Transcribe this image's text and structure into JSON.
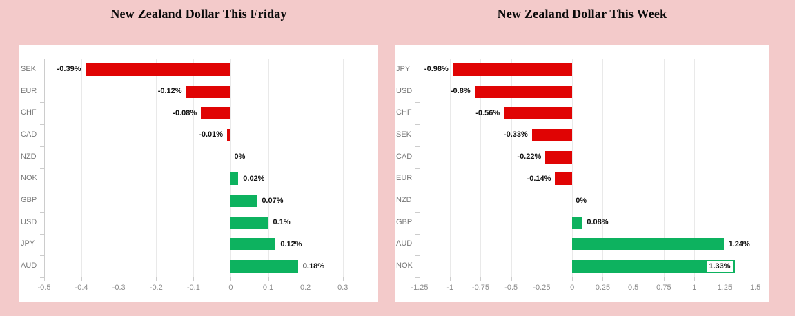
{
  "colors": {
    "page_background": "#f3caca",
    "card_background": "#ffffff",
    "bar_negative": "#e00404",
    "bar_positive": "#0db25f",
    "gridline": "#e9e9e9",
    "axis_line": "#cccccc",
    "tick_label_color": "#8a8a8a",
    "category_label_color": "#777777",
    "value_label_color": "#111111",
    "title_color": "#0a0a0a",
    "inside_label_background": "#ffffff"
  },
  "chart_data": [
    {
      "type": "bar",
      "orientation": "horizontal",
      "title": "New Zealand Dollar This Friday",
      "categories": [
        "SEK",
        "EUR",
        "CHF",
        "CAD",
        "NZD",
        "NOK",
        "GBP",
        "USD",
        "JPY",
        "AUD"
      ],
      "values": [
        -0.39,
        -0.12,
        -0.08,
        -0.01,
        0,
        0.02,
        0.07,
        0.1,
        0.12,
        0.18
      ],
      "value_labels": [
        "-0.39%",
        "-0.12%",
        "-0.08%",
        "-0.01%",
        "0%",
        "0.02%",
        "0.07%",
        "0.1%",
        "0.12%",
        "0.18%"
      ],
      "xticks": [
        -0.5,
        -0.4,
        -0.3,
        -0.2,
        -0.1,
        0,
        0.1,
        0.2,
        0.3
      ],
      "xtick_labels": [
        "-0.5",
        "-0.4",
        "-0.3",
        "-0.2",
        "-0.1",
        "0",
        "0.1",
        "0.2",
        "0.3"
      ],
      "xlim": [
        -0.5,
        0.38
      ],
      "grid": true,
      "legend": "none",
      "xlabel": "",
      "ylabel": ""
    },
    {
      "type": "bar",
      "orientation": "horizontal",
      "title": "New Zealand Dollar This Week",
      "categories": [
        "JPY",
        "USD",
        "CHF",
        "SEK",
        "CAD",
        "EUR",
        "NZD",
        "GBP",
        "AUD",
        "NOK"
      ],
      "values": [
        -0.98,
        -0.8,
        -0.56,
        -0.33,
        -0.22,
        -0.14,
        0,
        0.08,
        1.24,
        1.33
      ],
      "value_labels": [
        "-0.98%",
        "-0.8%",
        "-0.56%",
        "-0.33%",
        "-0.22%",
        "-0.14%",
        "0%",
        "0.08%",
        "1.24%",
        "1.33%"
      ],
      "xticks": [
        -1.25,
        -1,
        -0.75,
        -0.5,
        -0.25,
        0,
        0.25,
        0.5,
        0.75,
        1,
        1.25,
        1.5
      ],
      "xtick_labels": [
        "-1.25",
        "-1",
        "-0.75",
        "-0.5",
        "-0.25",
        "0",
        "0.25",
        "0.5",
        "0.75",
        "1",
        "1.25",
        "1.5"
      ],
      "xlim": [
        -1.25,
        1.57
      ],
      "grid": true,
      "legend": "none",
      "xlabel": "",
      "ylabel": ""
    }
  ]
}
